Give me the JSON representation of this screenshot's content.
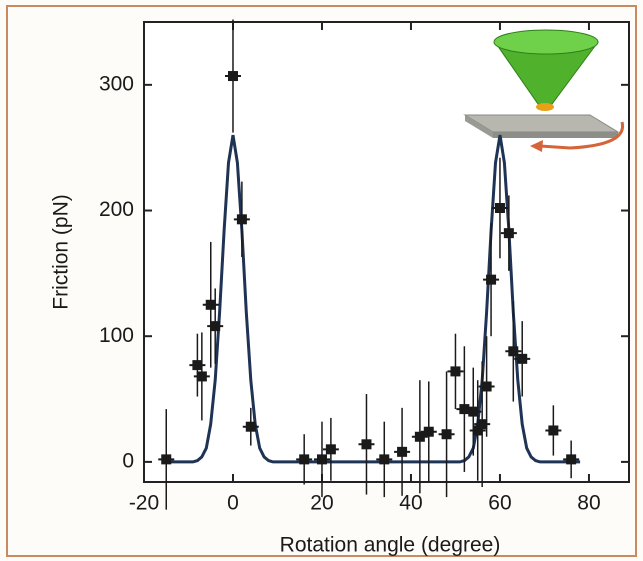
{
  "chart_data": {
    "type": "scatter",
    "xlabel": "Rotation angle (degree)",
    "ylabel": "Friction (pN)",
    "xlim": [
      -20,
      89
    ],
    "xticks": [
      -20,
      0,
      20,
      40,
      60,
      80
    ],
    "ylim": [
      -16,
      350
    ],
    "yticks": [
      0,
      100,
      200,
      300
    ],
    "grid": false,
    "points": {
      "color": "#1a1a1a",
      "x": [
        -15,
        -8,
        -7,
        -5,
        -4,
        0,
        2,
        4,
        16,
        20,
        22,
        30,
        34,
        38,
        42,
        44,
        48,
        50,
        52,
        54,
        55,
        56,
        57,
        58,
        60,
        62,
        63,
        65,
        72,
        76
      ],
      "values": [
        2,
        77,
        68,
        125,
        108,
        307,
        193,
        28,
        2,
        2,
        10,
        14,
        2,
        8,
        20,
        24,
        22,
        72,
        42,
        40,
        25,
        30,
        60,
        145,
        202,
        182,
        88,
        82,
        25,
        2
      ],
      "yerr": [
        40,
        25,
        35,
        50,
        30,
        45,
        30,
        15,
        20,
        30,
        25,
        40,
        30,
        35,
        45,
        40,
        50,
        30,
        50,
        35,
        40,
        50,
        40,
        45,
        40,
        30,
        40,
        30,
        20,
        15
      ]
    },
    "curve": {
      "color": "#1f3354",
      "x": [
        -16,
        -15,
        -14,
        -13,
        -12,
        -11,
        -10,
        -9,
        -8,
        -7,
        -6,
        -5,
        -4,
        -3,
        -2,
        -1,
        0,
        1,
        2,
        3,
        4,
        5,
        6,
        7,
        8,
        9,
        10,
        11,
        12,
        13,
        14,
        15,
        16,
        17,
        18,
        19,
        20,
        21,
        22,
        23,
        24,
        25,
        26,
        27,
        28,
        29,
        30,
        31,
        32,
        33,
        34,
        35,
        36,
        37,
        38,
        39,
        40,
        41,
        42,
        43,
        44,
        45,
        46,
        47,
        48,
        49,
        50,
        51,
        52,
        53,
        54,
        55,
        56,
        57,
        58,
        59,
        60,
        61,
        62,
        63,
        64,
        65,
        66,
        67,
        68,
        69,
        70,
        71,
        72,
        73,
        74,
        75,
        76,
        77,
        78
      ],
      "values": [
        0,
        0,
        0,
        0,
        0,
        0,
        0,
        0,
        1,
        4,
        11,
        30,
        65,
        119,
        184,
        238,
        260,
        238,
        184,
        119,
        65,
        30,
        11,
        4,
        1,
        0,
        0,
        0,
        0,
        0,
        0,
        0,
        0,
        0,
        0,
        0,
        0,
        0,
        0,
        0,
        0,
        0,
        0,
        0,
        0,
        0,
        0,
        0,
        0,
        0,
        0,
        0,
        0,
        0,
        0,
        0,
        0,
        0,
        0,
        0,
        0,
        0,
        0,
        0,
        0,
        0,
        0,
        0,
        1,
        4,
        11,
        30,
        65,
        119,
        184,
        238,
        260,
        238,
        184,
        119,
        65,
        30,
        11,
        4,
        1,
        0,
        0,
        0,
        0,
        0,
        0,
        0,
        0,
        0,
        0
      ]
    }
  }
}
